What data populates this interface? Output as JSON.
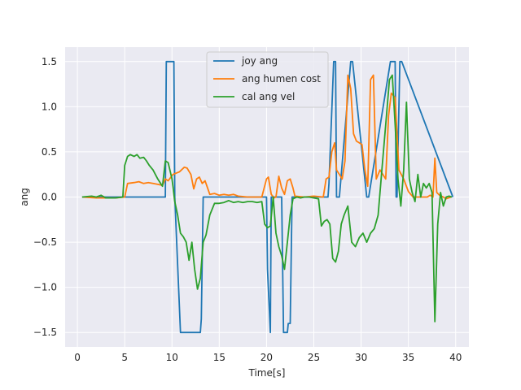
{
  "chart_data": {
    "type": "line",
    "title": "",
    "xlabel": "Time[s]",
    "ylabel": "ang",
    "xlim": [
      -1.3,
      41.4
    ],
    "ylim": [
      -1.66,
      1.66
    ],
    "xticks": [
      0,
      5,
      10,
      15,
      20,
      25,
      30,
      35,
      40
    ],
    "yticks": [
      -1.5,
      -1.0,
      -0.5,
      0.0,
      0.5,
      1.0,
      1.5
    ],
    "xtick_labels": [
      "0",
      "5",
      "10",
      "15",
      "20",
      "25",
      "30",
      "35",
      "40"
    ],
    "ytick_labels": [
      "−1.5",
      "−1.0",
      "−0.5",
      "0.0",
      "0.5",
      "1.0",
      "1.5"
    ],
    "grid": true,
    "legend_position": "top-center",
    "series": [
      {
        "name": "joy ang",
        "color": "#1f77b4",
        "x": [
          0.5,
          9.3,
          9.4,
          10.2,
          10.3,
          10.9,
          11.0,
          13.0,
          13.1,
          13.3,
          20.0,
          20.1,
          20.4,
          20.5,
          21.6,
          21.8,
          22.2,
          22.3,
          22.5,
          22.7,
          26.5,
          26.6,
          27.1,
          27.3,
          27.4,
          27.7,
          28.9,
          29.1,
          30.6,
          30.8,
          33.1,
          33.3,
          33.6,
          33.7,
          33.8,
          34.1,
          34.3,
          39.7
        ],
        "y": [
          0.0,
          0.0,
          1.5,
          1.5,
          0.0,
          -1.5,
          -1.5,
          -1.5,
          -1.35,
          0.0,
          0.0,
          -0.8,
          -1.5,
          0.0,
          0.0,
          -1.5,
          -1.5,
          -1.4,
          -1.4,
          0.0,
          0.0,
          0.15,
          1.5,
          1.5,
          0.0,
          0.0,
          1.5,
          1.5,
          0.0,
          0.0,
          1.5,
          1.5,
          1.5,
          0.0,
          0.0,
          1.5,
          1.5,
          0.0
        ]
      },
      {
        "name": "ang humen cost",
        "color": "#ff7f0e",
        "x": [
          0.5,
          2.0,
          4.0,
          5.0,
          5.3,
          6.0,
          6.5,
          7.0,
          7.5,
          8.0,
          8.5,
          9.0,
          9.3,
          9.6,
          10.1,
          10.8,
          11.3,
          11.6,
          12.0,
          12.3,
          12.6,
          12.9,
          13.2,
          13.5,
          14.0,
          14.5,
          15.0,
          15.5,
          16.0,
          16.5,
          17.0,
          18.0,
          19.0,
          19.5,
          20.0,
          20.2,
          20.5,
          20.8,
          21.0,
          21.3,
          21.6,
          21.9,
          22.2,
          22.5,
          22.8,
          23.0,
          24.0,
          25.0,
          26.0,
          26.3,
          26.6,
          26.9,
          27.2,
          27.4,
          27.7,
          28.0,
          28.3,
          28.6,
          28.9,
          29.2,
          29.5,
          29.8,
          30.1,
          30.4,
          30.7,
          31.0,
          31.3,
          31.6,
          32.0,
          32.3,
          32.6,
          32.9,
          33.2,
          33.6,
          34.0,
          34.5,
          35.0,
          35.5,
          36.0,
          36.5,
          37.0,
          37.3,
          37.6,
          37.8,
          38.0,
          38.3,
          38.7,
          39.0,
          39.5
        ],
        "y": [
          0.0,
          -0.01,
          -0.01,
          0.0,
          0.15,
          0.16,
          0.17,
          0.15,
          0.16,
          0.15,
          0.14,
          0.13,
          0.2,
          0.18,
          0.25,
          0.28,
          0.33,
          0.32,
          0.25,
          0.09,
          0.2,
          0.22,
          0.15,
          0.18,
          0.03,
          0.04,
          0.02,
          0.03,
          0.02,
          0.03,
          0.01,
          0.0,
          0.0,
          0.0,
          0.2,
          0.22,
          0.03,
          -0.01,
          0.0,
          0.23,
          0.1,
          0.03,
          0.18,
          0.2,
          0.1,
          0.01,
          0.0,
          0.01,
          0.0,
          0.2,
          0.22,
          0.5,
          0.6,
          0.3,
          0.25,
          0.2,
          0.4,
          1.35,
          1.2,
          0.7,
          0.62,
          0.6,
          0.58,
          0.3,
          0.12,
          1.3,
          1.35,
          0.2,
          0.3,
          0.25,
          0.2,
          0.9,
          1.15,
          1.1,
          0.3,
          0.2,
          0.06,
          0.0,
          0.0,
          0.0,
          0.0,
          0.02,
          0.0,
          0.43,
          0.05,
          0.02,
          0.0,
          -0.02,
          0.0
        ]
      },
      {
        "name": "cal ang vel",
        "color": "#2ca02c",
        "x": [
          0.5,
          1.5,
          2.0,
          2.5,
          3.0,
          4.0,
          4.8,
          5.0,
          5.3,
          5.6,
          6.0,
          6.3,
          6.6,
          7.0,
          7.3,
          7.6,
          8.0,
          8.5,
          9.0,
          9.3,
          9.6,
          10.0,
          10.3,
          10.6,
          10.9,
          11.2,
          11.5,
          11.8,
          12.1,
          12.4,
          12.7,
          13.0,
          13.3,
          13.6,
          14.0,
          14.5,
          15.0,
          15.5,
          16.0,
          16.5,
          17.0,
          17.5,
          18.0,
          18.5,
          19.0,
          19.5,
          19.8,
          20.1,
          20.4,
          20.7,
          21.0,
          21.3,
          21.6,
          21.9,
          22.2,
          22.5,
          22.8,
          23.2,
          23.6,
          24.0,
          24.5,
          25.0,
          25.5,
          25.8,
          26.1,
          26.4,
          26.7,
          27.0,
          27.3,
          27.6,
          27.9,
          28.2,
          28.6,
          29.0,
          29.4,
          29.8,
          30.2,
          30.6,
          31.0,
          31.4,
          31.8,
          32.2,
          32.6,
          33.0,
          33.3,
          33.6,
          33.9,
          34.2,
          34.5,
          34.8,
          35.1,
          35.4,
          35.7,
          36.0,
          36.3,
          36.6,
          36.9,
          37.2,
          37.5,
          37.8,
          38.1,
          38.4,
          38.7,
          39.0,
          39.3,
          39.6
        ],
        "y": [
          0.0,
          0.01,
          0.0,
          0.02,
          -0.01,
          -0.01,
          0.0,
          0.35,
          0.45,
          0.47,
          0.45,
          0.47,
          0.43,
          0.44,
          0.4,
          0.35,
          0.3,
          0.2,
          0.12,
          0.4,
          0.38,
          0.2,
          -0.05,
          -0.2,
          -0.4,
          -0.44,
          -0.5,
          -0.7,
          -0.5,
          -0.8,
          -1.02,
          -0.9,
          -0.5,
          -0.42,
          -0.2,
          -0.07,
          -0.07,
          -0.06,
          -0.04,
          -0.06,
          -0.05,
          -0.06,
          -0.05,
          -0.05,
          -0.06,
          -0.05,
          -0.3,
          -0.34,
          -0.32,
          0.0,
          -0.4,
          -0.55,
          -0.65,
          -0.8,
          -0.5,
          -0.2,
          -0.02,
          0.0,
          -0.01,
          0.0,
          0.0,
          -0.01,
          -0.02,
          -0.32,
          -0.27,
          -0.25,
          -0.3,
          -0.68,
          -0.72,
          -0.6,
          -0.3,
          -0.2,
          -0.1,
          -0.5,
          -0.55,
          -0.45,
          -0.4,
          -0.5,
          -0.4,
          -0.35,
          -0.2,
          0.3,
          0.8,
          1.3,
          1.35,
          0.8,
          0.2,
          -0.1,
          0.3,
          1.05,
          0.2,
          0.05,
          -0.05,
          0.25,
          0.0,
          0.15,
          0.1,
          0.15,
          0.05,
          -1.38,
          -0.3,
          0.05,
          -0.1,
          0.0,
          0.01,
          0.0
        ]
      }
    ]
  }
}
